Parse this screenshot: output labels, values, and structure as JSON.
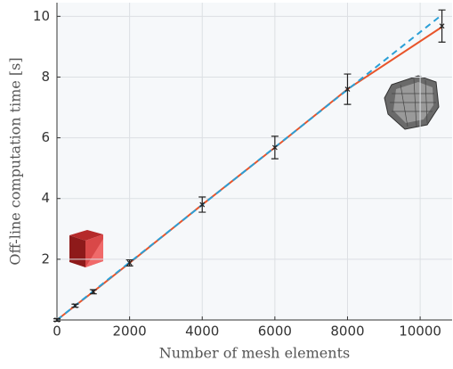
{
  "chart_data": {
    "type": "line",
    "xlabel": "Number of mesh elements",
    "ylabel": "Off-line computation time [s]",
    "xlim": [
      0,
      10880
    ],
    "ylim": [
      0,
      10.45
    ],
    "xticks": [
      0,
      2000,
      4000,
      6000,
      8000,
      10000
    ],
    "yticks": [
      2,
      4,
      6,
      8,
      10
    ],
    "grid": true,
    "series": [
      {
        "style": "markers",
        "color": "#222222",
        "x": [
          0,
          500,
          1000,
          2000,
          4000,
          6000,
          8000,
          10600
        ],
        "values": [
          0,
          0.47,
          0.93,
          1.88,
          3.8,
          5.68,
          7.6,
          9.68
        ],
        "errors": [
          0.04,
          0.05,
          0.07,
          0.1,
          0.25,
          0.37,
          0.5,
          0.53
        ]
      },
      {
        "style": "solid",
        "color": "#e8552b",
        "x": [
          0,
          500,
          1000,
          2000,
          4000,
          6000,
          8000,
          10600
        ],
        "values": [
          0,
          0.47,
          0.93,
          1.88,
          3.8,
          5.68,
          7.6,
          9.65
        ]
      },
      {
        "style": "dashed",
        "color": "#2a9fd6",
        "x": [
          0,
          10600
        ],
        "values": [
          0,
          10.05
        ]
      }
    ]
  }
}
